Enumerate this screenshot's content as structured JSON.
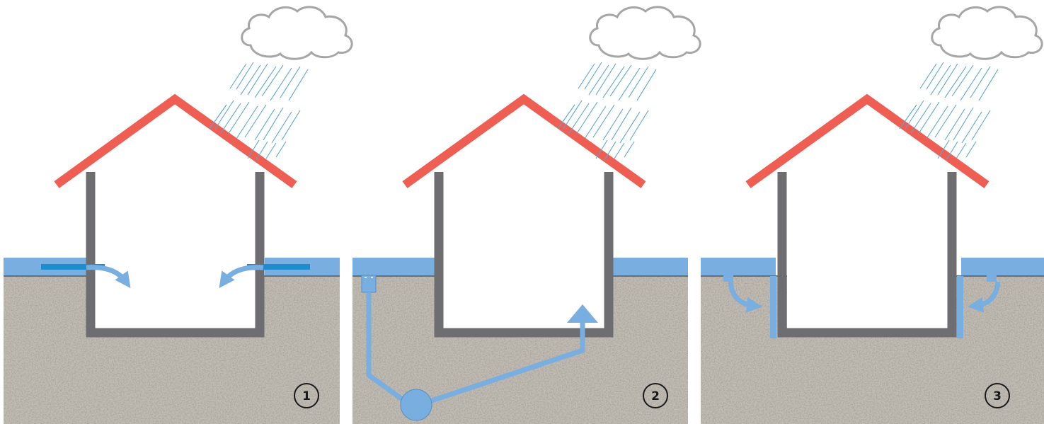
{
  "figure": {
    "description_labels": [],
    "panels": [
      {
        "id": "panel-1",
        "number": "1",
        "scenario": "surface-water-seepage-through-walls"
      },
      {
        "id": "panel-2",
        "number": "2",
        "scenario": "groundwater-drained-to-sump-and-pushed-up-through-floor"
      },
      {
        "id": "panel-3",
        "number": "3",
        "scenario": "water-trickling-down-exterior-wall-into-footing"
      }
    ]
  },
  "colors": {
    "roof": "#ee5e52",
    "wall": "#6e6e70",
    "water": "#78aee0",
    "water_dark": "#1f8ccd",
    "ground": "#c2bdb4",
    "cloud_outline": "#a6a6a6",
    "rain": "#5aa6da",
    "badge_outline": "#1a1a1a"
  },
  "icons": {
    "cloud": "rain-cloud-icon",
    "arrow": "water-flow-arrow-icon",
    "sump": "sump-pit-icon",
    "drain": "floor-drain-icon"
  }
}
